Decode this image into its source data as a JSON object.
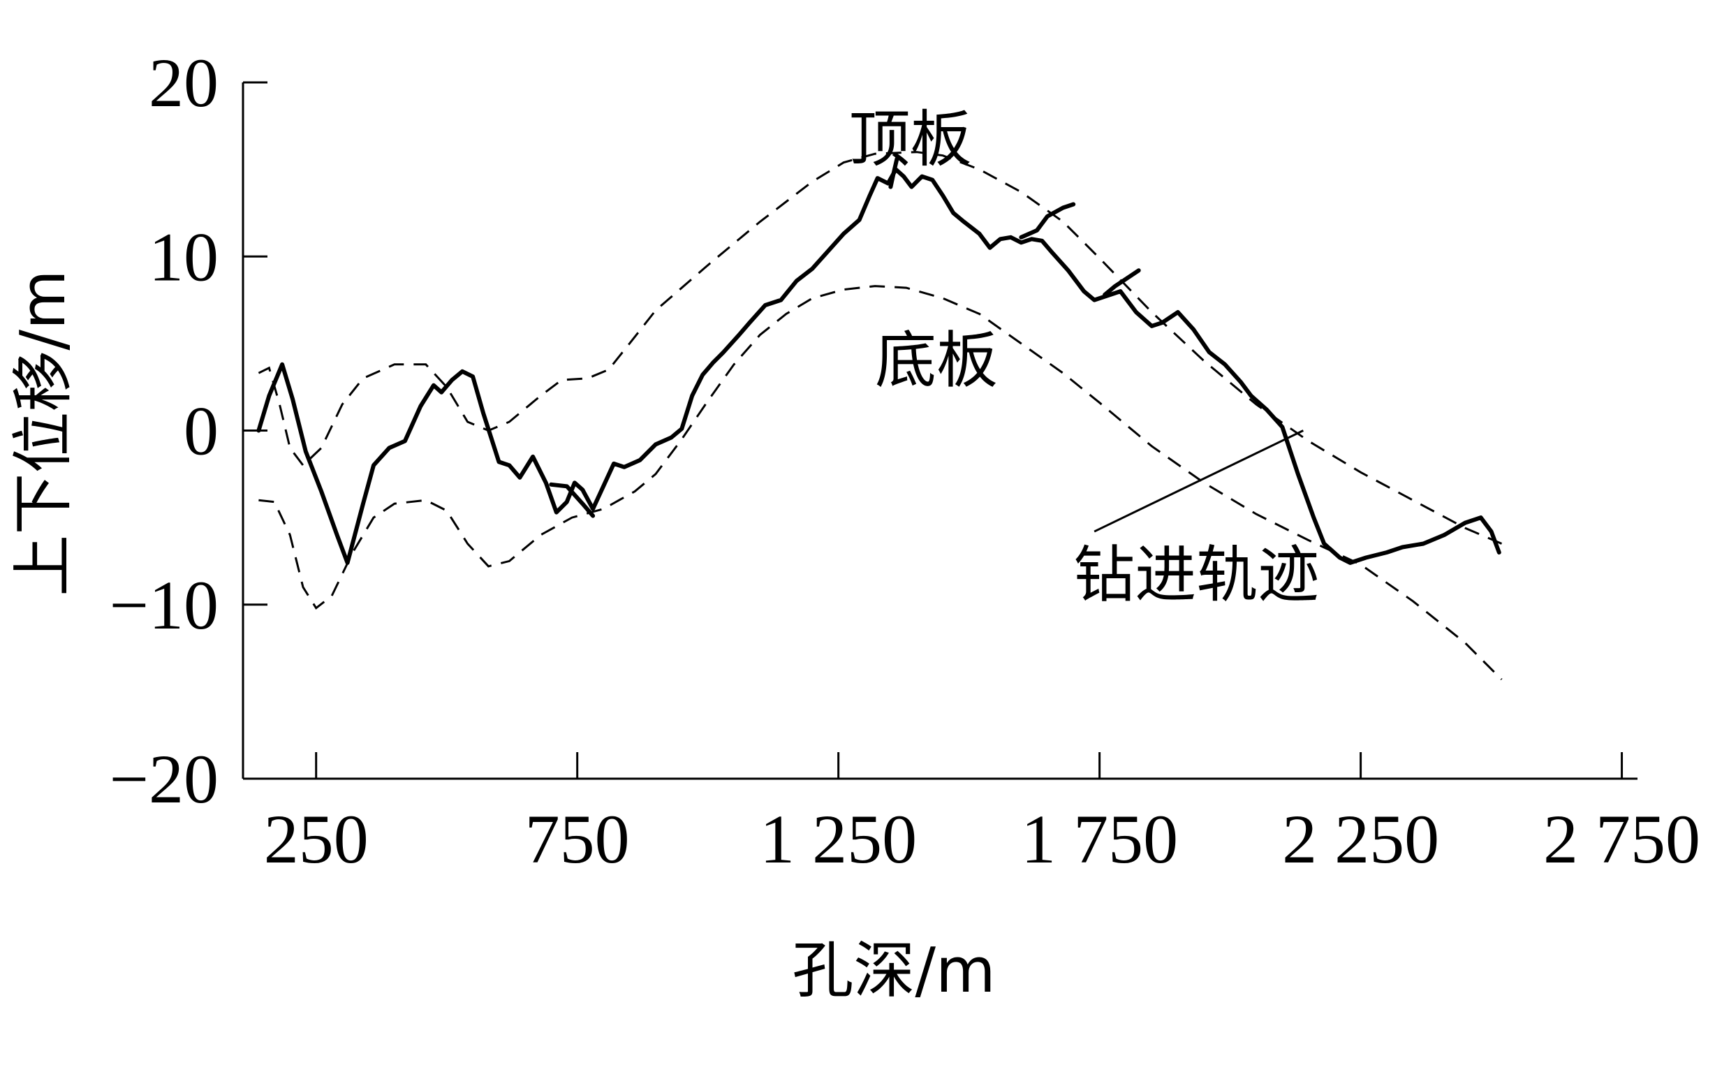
{
  "chart_data": {
    "type": "line",
    "xlabel": "孔深/m",
    "ylabel": "上下位移/m",
    "xlim": [
      110,
      2780
    ],
    "ylim": [
      -20,
      20
    ],
    "x_ticks": [
      250,
      750,
      1250,
      1750,
      2250,
      2750
    ],
    "x_tick_labels": [
      "250",
      "750",
      "1 250",
      "1 750",
      "2 250",
      "2 750"
    ],
    "y_ticks": [
      20,
      10,
      0,
      -10,
      -20
    ],
    "y_tick_labels": [
      "20",
      "10",
      "0",
      "−10",
      "−20"
    ],
    "series": [
      {
        "name": "顶板",
        "style": "dashed",
        "points": [
          [
            140,
            3.3
          ],
          [
            160,
            3.6
          ],
          [
            180,
            1.5
          ],
          [
            200,
            -1
          ],
          [
            225,
            -2
          ],
          [
            260,
            -1
          ],
          [
            300,
            1.5
          ],
          [
            340,
            3
          ],
          [
            400,
            3.8
          ],
          [
            460,
            3.8
          ],
          [
            500,
            2.5
          ],
          [
            540,
            0.5
          ],
          [
            580,
            0
          ],
          [
            620,
            0.5
          ],
          [
            680,
            2
          ],
          [
            720,
            2.9
          ],
          [
            770,
            3
          ],
          [
            810,
            3.5
          ],
          [
            850,
            5
          ],
          [
            900,
            6.9
          ],
          [
            1000,
            9.5
          ],
          [
            1100,
            12
          ],
          [
            1200,
            14.3
          ],
          [
            1260,
            15.4
          ],
          [
            1320,
            15.9
          ],
          [
            1400,
            16
          ],
          [
            1450,
            15.8
          ],
          [
            1520,
            15
          ],
          [
            1600,
            13.7
          ],
          [
            1680,
            12
          ],
          [
            1750,
            9.9
          ],
          [
            1850,
            6.8
          ],
          [
            1950,
            4
          ],
          [
            2050,
            1.5
          ],
          [
            2150,
            -0.6
          ],
          [
            2250,
            -2.4
          ],
          [
            2350,
            -4
          ],
          [
            2450,
            -5.6
          ],
          [
            2520,
            -6.5
          ]
        ]
      },
      {
        "name": "底板",
        "style": "dashed",
        "points": [
          [
            140,
            -4
          ],
          [
            170,
            -4.1
          ],
          [
            200,
            -6
          ],
          [
            225,
            -9
          ],
          [
            250,
            -10.2
          ],
          [
            280,
            -9.5
          ],
          [
            320,
            -7
          ],
          [
            360,
            -5
          ],
          [
            400,
            -4.2
          ],
          [
            460,
            -4
          ],
          [
            500,
            -4.6
          ],
          [
            540,
            -6.5
          ],
          [
            580,
            -7.8
          ],
          [
            620,
            -7.5
          ],
          [
            680,
            -6
          ],
          [
            740,
            -5
          ],
          [
            800,
            -4.5
          ],
          [
            860,
            -3.5
          ],
          [
            900,
            -2.5
          ],
          [
            950,
            -0.5
          ],
          [
            1000,
            1.7
          ],
          [
            1050,
            3.8
          ],
          [
            1100,
            5.5
          ],
          [
            1150,
            6.7
          ],
          [
            1200,
            7.6
          ],
          [
            1260,
            8.1
          ],
          [
            1320,
            8.3
          ],
          [
            1380,
            8.2
          ],
          [
            1450,
            7.6
          ],
          [
            1520,
            6.7
          ],
          [
            1600,
            5
          ],
          [
            1680,
            3.3
          ],
          [
            1750,
            1.6
          ],
          [
            1850,
            -0.9
          ],
          [
            1950,
            -3
          ],
          [
            2050,
            -4.8
          ],
          [
            2150,
            -6.3
          ],
          [
            2250,
            -7.7
          ],
          [
            2350,
            -9.8
          ],
          [
            2450,
            -12.2
          ],
          [
            2520,
            -14.3
          ]
        ]
      },
      {
        "name": "钻进轨迹",
        "style": "solid",
        "points": [
          [
            140,
            0
          ],
          [
            160,
            2
          ],
          [
            185,
            3.8
          ],
          [
            205,
            1.8
          ],
          [
            230,
            -1.2
          ],
          [
            260,
            -3.5
          ],
          [
            290,
            -6
          ],
          [
            310,
            -7.6
          ],
          [
            340,
            -4.2
          ],
          [
            360,
            -2
          ],
          [
            390,
            -1
          ],
          [
            420,
            -0.6
          ],
          [
            450,
            1.4
          ],
          [
            475,
            2.6
          ],
          [
            490,
            2.2
          ],
          [
            510,
            2.9
          ],
          [
            530,
            3.4
          ],
          [
            550,
            3.1
          ],
          [
            570,
            1
          ],
          [
            600,
            -1.8
          ],
          [
            620,
            -2
          ],
          [
            640,
            -2.7
          ],
          [
            665,
            -1.5
          ],
          [
            690,
            -3
          ],
          [
            710,
            -4.7
          ],
          [
            730,
            -4.1
          ],
          [
            745,
            -3
          ],
          [
            760,
            -3.4
          ],
          [
            780,
            -4.5
          ],
          [
            800,
            -3.2
          ],
          [
            820,
            -1.9
          ],
          [
            840,
            -2.1
          ],
          [
            870,
            -1.7
          ],
          [
            900,
            -0.8
          ],
          [
            930,
            -0.4
          ],
          [
            950,
            0.1
          ],
          [
            970,
            2
          ],
          [
            990,
            3.2
          ],
          [
            1010,
            3.9
          ],
          [
            1030,
            4.5
          ],
          [
            1060,
            5.5
          ],
          [
            1080,
            6.2
          ],
          [
            1110,
            7.2
          ],
          [
            1140,
            7.5
          ],
          [
            1170,
            8.6
          ],
          [
            1200,
            9.3
          ],
          [
            1230,
            10.3
          ],
          [
            1260,
            11.3
          ],
          [
            1290,
            12.1
          ],
          [
            1310,
            13.5
          ],
          [
            1325,
            14.5
          ],
          [
            1345,
            14.2
          ],
          [
            1360,
            15
          ],
          [
            1375,
            14.6
          ],
          [
            1390,
            14
          ],
          [
            1410,
            14.6
          ],
          [
            1430,
            14.4
          ],
          [
            1450,
            13.5
          ],
          [
            1470,
            12.5
          ],
          [
            1490,
            12
          ],
          [
            1520,
            11.3
          ],
          [
            1540,
            10.5
          ],
          [
            1560,
            11
          ],
          [
            1580,
            11.1
          ],
          [
            1600,
            10.8
          ],
          [
            1620,
            11
          ],
          [
            1640,
            10.9
          ],
          [
            1660,
            10.2
          ],
          [
            1690,
            9.2
          ],
          [
            1720,
            8
          ],
          [
            1740,
            7.5
          ],
          [
            1770,
            7.8
          ],
          [
            1790,
            8
          ],
          [
            1820,
            6.8
          ],
          [
            1850,
            6
          ],
          [
            1870,
            6.2
          ],
          [
            1900,
            6.8
          ],
          [
            1930,
            5.8
          ],
          [
            1960,
            4.5
          ],
          [
            1990,
            3.8
          ],
          [
            2020,
            2.8
          ],
          [
            2040,
            2
          ],
          [
            2070,
            1.2
          ],
          [
            2100,
            0.2
          ],
          [
            2130,
            -2.5
          ],
          [
            2160,
            -5
          ],
          [
            2180,
            -6.5
          ],
          [
            2210,
            -7.3
          ],
          [
            2230,
            -7.6
          ],
          [
            2260,
            -7.3
          ],
          [
            2300,
            -7
          ],
          [
            2330,
            -6.7
          ],
          [
            2370,
            -6.5
          ],
          [
            2410,
            -6
          ],
          [
            2450,
            -5.3
          ],
          [
            2480,
            -5
          ],
          [
            2500,
            -5.8
          ],
          [
            2515,
            -7
          ]
        ],
        "branches": [
          [
            [
              700,
              -3.1
            ],
            [
              730,
              -3.2
            ],
            [
              760,
              -4.2
            ],
            [
              780,
              -4.9
            ]
          ],
          [
            [
              1350,
              14
            ],
            [
              1355,
              14.7
            ],
            [
              1362,
              15.6
            ]
          ],
          [
            [
              1600,
              11.1
            ],
            [
              1630,
              11.5
            ],
            [
              1650,
              12.3
            ],
            [
              1680,
              12.8
            ],
            [
              1700,
              13
            ]
          ],
          [
            [
              1760,
              7.8
            ],
            [
              1780,
              8.3
            ],
            [
              1800,
              8.7
            ],
            [
              1825,
              9.2
            ]
          ]
        ]
      }
    ],
    "annotations": [
      {
        "text": "顶板",
        "x": 1270,
        "y": 15.5
      },
      {
        "text": "底板",
        "x": 1320,
        "y": 2.8
      },
      {
        "text": "钻进轨迹",
        "x": 1700,
        "y": -9.5,
        "arrow_from": [
          1740,
          -5.8
        ],
        "arrow_to": [
          2140,
          0
        ]
      }
    ]
  }
}
